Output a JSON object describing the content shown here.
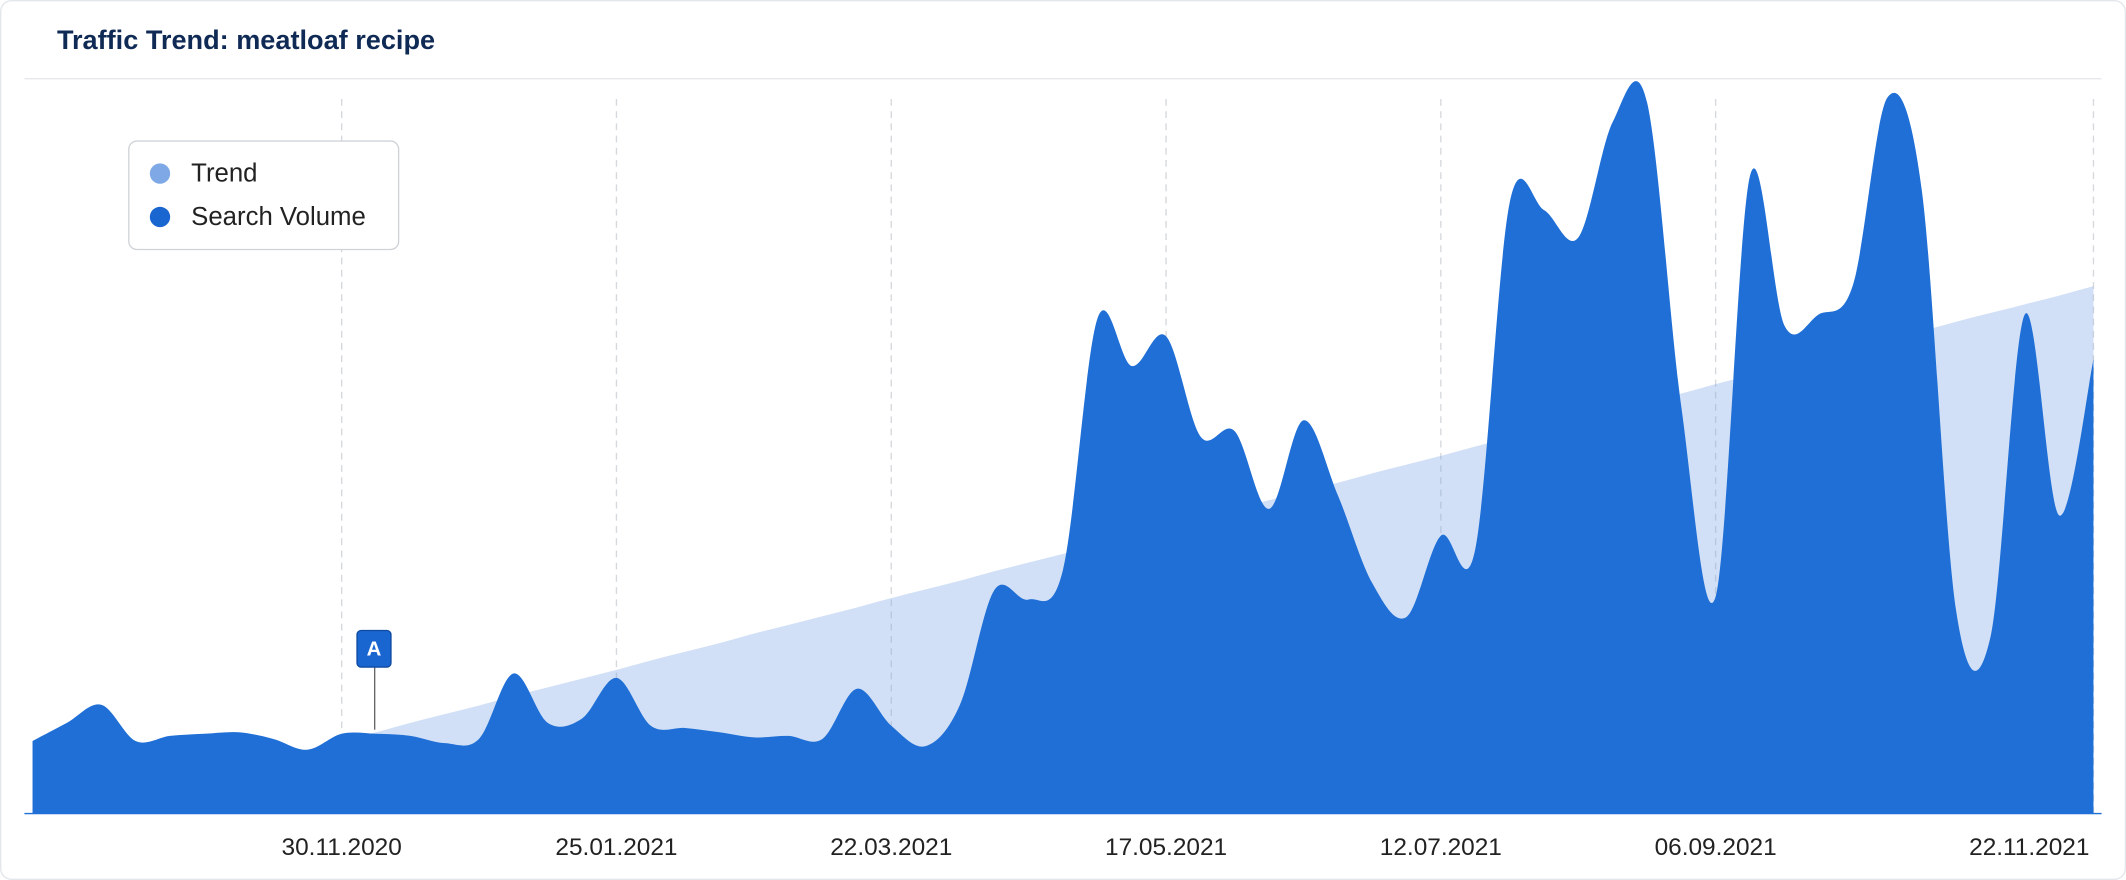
{
  "chart_data": {
    "type": "area",
    "title": "Traffic Trend: meatloaf recipe",
    "categories": [
      null,
      null,
      null,
      null,
      null,
      null,
      null,
      null,
      null,
      "30.11.2020",
      null,
      null,
      null,
      null,
      null,
      null,
      null,
      "25.01.2021",
      null,
      null,
      null,
      null,
      null,
      null,
      null,
      "22.03.2021",
      null,
      null,
      null,
      null,
      null,
      null,
      null,
      "17.05.2021",
      null,
      null,
      null,
      null,
      null,
      null,
      null,
      "12.07.2021",
      null,
      null,
      null,
      null,
      null,
      null,
      null,
      "06.09.2021",
      null,
      null,
      null,
      null,
      null,
      null,
      null,
      null,
      null,
      null,
      "22.11.2021"
    ],
    "series": [
      {
        "name": "Trend",
        "color": "#7fa9e6",
        "values": [
          0,
          1.1,
          2.2,
          3.3,
          4.4,
          5.5,
          6.6,
          7.7,
          8.8,
          10.0,
          11.2,
          12.5,
          13.7,
          14.9,
          16.2,
          17.4,
          18.6,
          19.8,
          21.1,
          22.3,
          23.5,
          24.8,
          26.0,
          27.2,
          28.4,
          29.7,
          30.9,
          32.1,
          33.4,
          34.6,
          35.8,
          37.0,
          38.3,
          39.5,
          40.7,
          42.0,
          43.2,
          44.4,
          45.6,
          46.9,
          48.1,
          49.3,
          50.6,
          51.8,
          53.0,
          54.2,
          55.5,
          56.7,
          57.9,
          59.2,
          60.4,
          61.6,
          62.8,
          64.1,
          65.3,
          66.5,
          67.8,
          69.0,
          70.2,
          71.4,
          72.7
        ]
      },
      {
        "name": "Search Volume",
        "color": "#1f6fd6",
        "values": [
          10,
          12.5,
          15,
          10,
          10.7,
          11,
          11.2,
          10.3,
          8.8,
          11,
          11,
          10.7,
          9.7,
          10.3,
          19.3,
          12.5,
          13.1,
          18.7,
          12.1,
          11.8,
          11.2,
          10.5,
          10.7,
          10.3,
          17.2,
          12.1,
          9.3,
          15,
          30.8,
          29.5,
          33.6,
          68.2,
          61.7,
          65.8,
          52,
          52.7,
          42,
          54.2,
          43.9,
          31.8,
          27.1,
          38.3,
          36.4,
          84.1,
          83.2,
          79.4,
          95.3,
          98.1,
          56.1,
          29.9,
          87.9,
          67.3,
          68.8,
          72.9,
          98.7,
          86,
          28,
          24.3,
          68.8,
          41.1,
          62.6
        ]
      }
    ],
    "ylim": [
      0,
      100
    ],
    "legend": "top-left",
    "annotations": [
      {
        "text": "A",
        "index": 10
      }
    ]
  }
}
